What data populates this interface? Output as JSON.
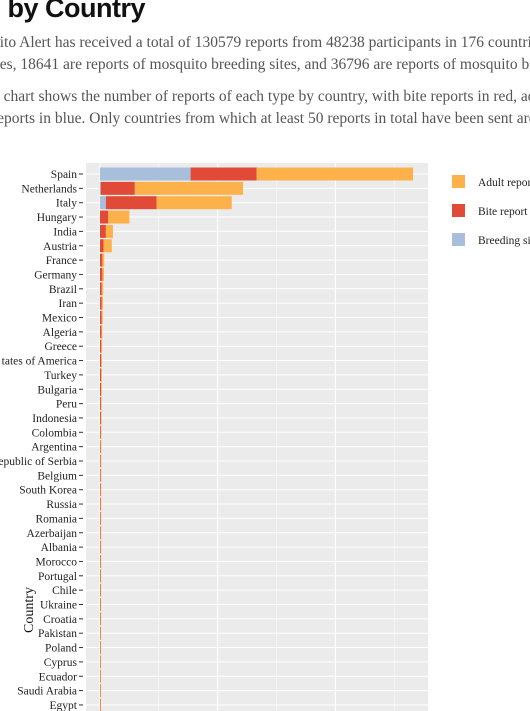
{
  "page": {
    "title": "s by Country",
    "paragraph1_line1": "uito Alert has received a total of 130579 reports from 48238 participants in 176 countrie",
    "paragraph1_line2": "oes, 18641 are reports of mosquito breeding sites, and 36796 are reports of mosquito bite",
    "paragraph2_line1": "g chart shows the number of reports of each type by country, with bite reports in red, adu",
    "paragraph2_line2": "reports in blue. Only countries from which at least 50 reports in total have been sent are c"
  },
  "colors": {
    "adult": "#fdb14b",
    "bite": "#e14a36",
    "breeding": "#a8bfdc",
    "panel": "#ebebeb",
    "grid": "#ffffff"
  },
  "chart_data": {
    "type": "bar",
    "orientation": "horizontal",
    "stacked": true,
    "ylabel": "Country",
    "xlim": [
      0,
      28000
    ],
    "grid": true,
    "legend_position": "right",
    "categories": [
      "Spain",
      "Netherlands",
      "Italy",
      "Hungary",
      "India",
      "Austria",
      "France",
      "Germany",
      "Brazil",
      "Iran",
      "Mexico",
      "Algeria",
      "Greece",
      "tates of America",
      "Turkey",
      "Bulgaria",
      "Peru",
      "Indonesia",
      "Colombia",
      "Argentina",
      "epublic of Serbia",
      "Belgium",
      "South Korea",
      "Russia",
      "Romania",
      "Azerbaijan",
      "Albania",
      "Morocco",
      "Portugal",
      "Chile",
      "Ukraine",
      "Croatia",
      "Pakistan",
      "Poland",
      "Cyprus",
      "Ecuador",
      "Saudi Arabia",
      "Egypt"
    ],
    "series": [
      {
        "name": "Breeding si",
        "color_key": "breeding",
        "values": [
          7700,
          60,
          500,
          0,
          0,
          0,
          0,
          0,
          0,
          0,
          0,
          0,
          0,
          0,
          0,
          0,
          0,
          0,
          0,
          0,
          0,
          0,
          0,
          0,
          0,
          0,
          0,
          0,
          0,
          0,
          0,
          0,
          0,
          0,
          0,
          0,
          0,
          0
        ]
      },
      {
        "name": "Bite report",
        "color_key": "bite",
        "values": [
          5600,
          2900,
          4300,
          700,
          500,
          300,
          200,
          200,
          150,
          150,
          140,
          120,
          110,
          100,
          100,
          90,
          80,
          80,
          70,
          60,
          60,
          60,
          55,
          55,
          50,
          50,
          45,
          45,
          45,
          40,
          40,
          40,
          35,
          35,
          30,
          30,
          30,
          30
        ]
      },
      {
        "name": "Adult repor",
        "color_key": "adult",
        "values": [
          13300,
          9200,
          6400,
          1800,
          600,
          700,
          160,
          140,
          120,
          100,
          90,
          80,
          70,
          70,
          60,
          60,
          50,
          45,
          40,
          45,
          35,
          30,
          30,
          25,
          30,
          25,
          25,
          20,
          20,
          20,
          15,
          15,
          15,
          15,
          15,
          15,
          10,
          10
        ]
      }
    ]
  }
}
